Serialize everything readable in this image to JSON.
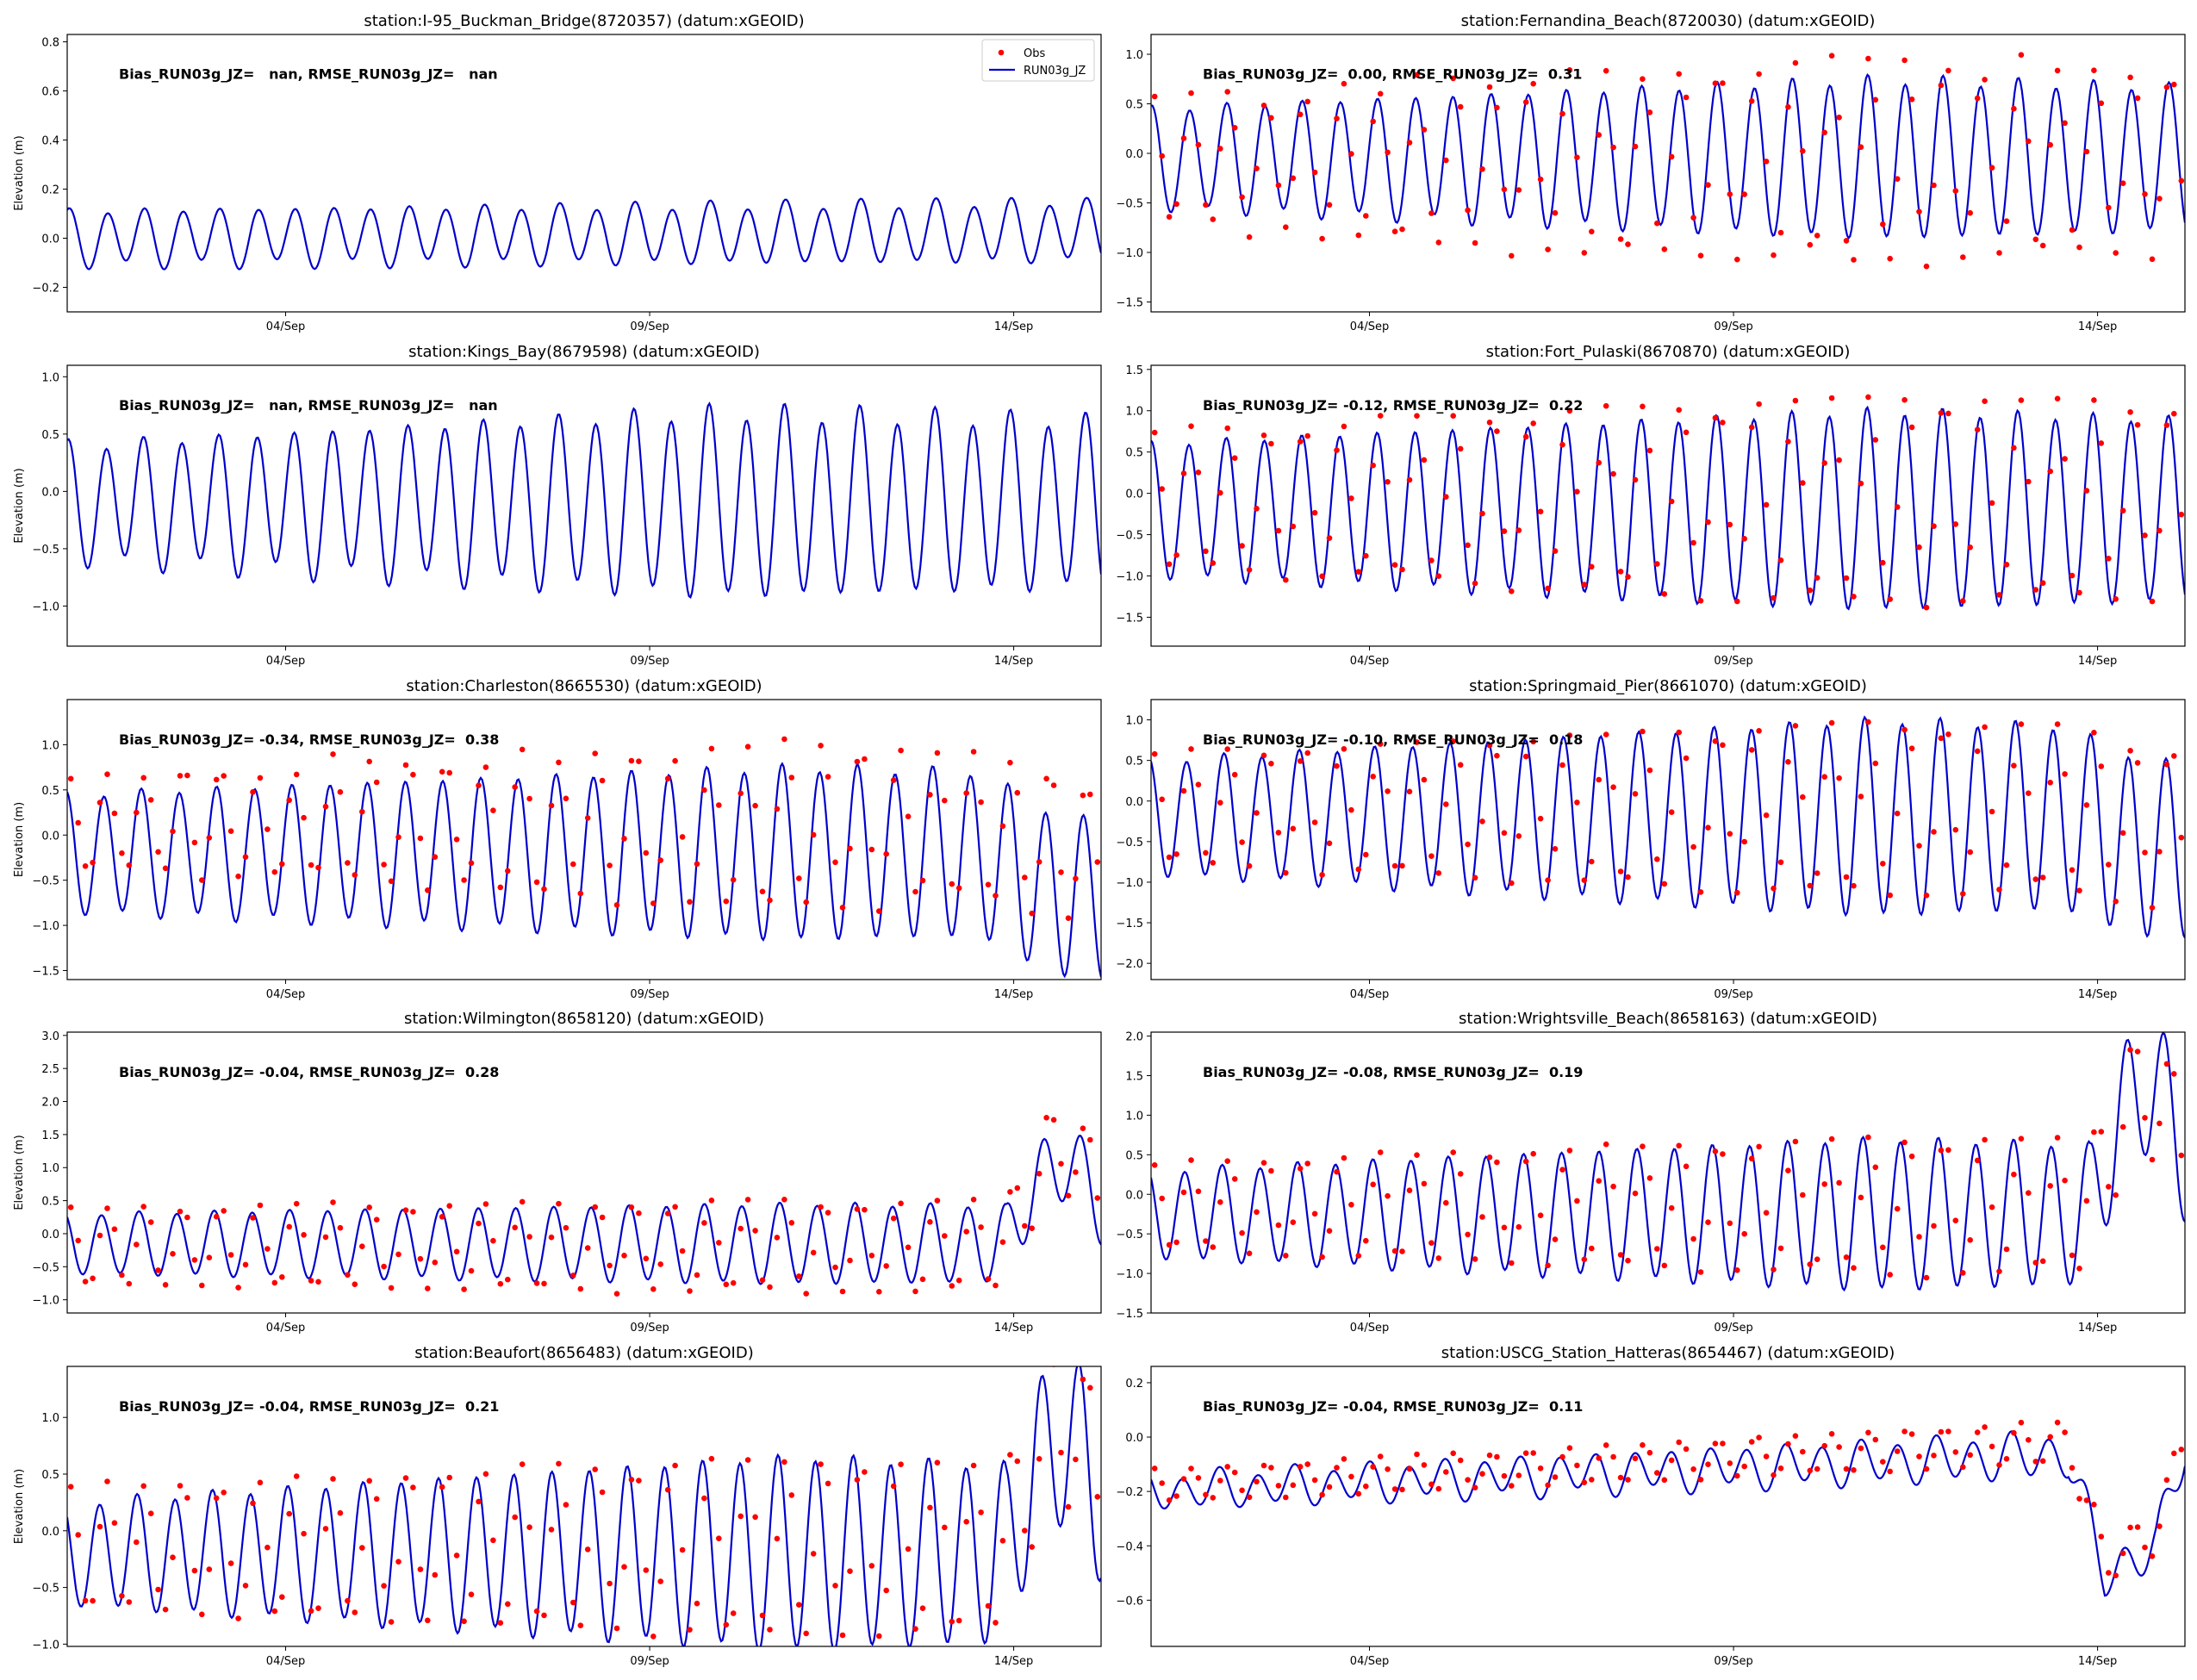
{
  "figure": {
    "legend": {
      "obs_label": "Obs",
      "model_label": "RUN03g_JZ",
      "placement": "upper right"
    },
    "colors": {
      "obs": "#ff0000",
      "model": "#0000cc",
      "axes": "#000000",
      "background": "#ffffff"
    }
  },
  "chart_data": [
    {
      "type": "line",
      "title": "station:I-95_Buckman_Bridge(8720357) (datum:xGEOID)",
      "ylabel": "Elevation (m)",
      "stats_text": "Bias_RUN03g_JZ=   nan, RMSE_RUN03g_JZ=   nan",
      "x_ticks": [
        "04/Sep",
        "09/Sep",
        "14/Sep"
      ],
      "x_tick_days": [
        4,
        9,
        14
      ],
      "xlim_days": [
        1,
        15.2
      ],
      "ylim": [
        -0.3,
        0.83
      ],
      "y_ticks": [
        -0.2,
        0.0,
        0.2,
        0.4,
        0.6,
        0.8
      ],
      "y_tick_labels": [
        "−0.2",
        "0.0",
        "0.2",
        "0.4",
        "0.6",
        "0.8"
      ],
      "has_obs": false,
      "show_legend": true,
      "series": [
        {
          "name": "RUN03g_JZ",
          "kind": "model_tide",
          "mean": 0.0,
          "amp_start": 0.11,
          "amp_end": 0.12,
          "mean_trend_end": 0.03,
          "diurnal": 0.02,
          "phase": 0.0
        }
      ]
    },
    {
      "type": "line",
      "title": "station:Fernandina_Beach(8720030) (datum:xGEOID)",
      "ylabel": "",
      "stats_text": "Bias_RUN03g_JZ=  0.00, RMSE_RUN03g_JZ=  0.31",
      "x_ticks": [
        "04/Sep",
        "09/Sep",
        "14/Sep"
      ],
      "x_tick_days": [
        4,
        9,
        14
      ],
      "xlim_days": [
        1,
        15.2
      ],
      "ylim": [
        -1.6,
        1.2
      ],
      "y_ticks": [
        -1.5,
        -1.0,
        -0.5,
        0.0,
        0.5,
        1.0
      ],
      "y_tick_labels": [
        "−1.5",
        "−1.0",
        "−0.5",
        "0.0",
        "0.5",
        "1.0"
      ],
      "has_obs": true,
      "show_legend": false,
      "series": [
        {
          "name": "RUN03g_JZ",
          "kind": "model_tide",
          "mean": -0.05,
          "amp_start": 0.5,
          "amp_end": 0.8,
          "peak_day": 11,
          "diurnal": 0.05,
          "phase": 0.3
        },
        {
          "name": "Obs",
          "kind": "obs_tide",
          "mean": -0.1,
          "amp_start": 0.65,
          "amp_end": 1.05,
          "peak_day": 11,
          "scatter": 0.35
        }
      ]
    },
    {
      "type": "line",
      "title": "station:Kings_Bay(8679598) (datum:xGEOID)",
      "ylabel": "Elevation (m)",
      "stats_text": "Bias_RUN03g_JZ=   nan, RMSE_RUN03g_JZ=   nan",
      "x_ticks": [
        "04/Sep",
        "09/Sep",
        "14/Sep"
      ],
      "x_tick_days": [
        4,
        9,
        14
      ],
      "xlim_days": [
        1,
        15.2
      ],
      "ylim": [
        -1.35,
        1.1
      ],
      "y_ticks": [
        -1.0,
        -0.5,
        0.0,
        0.5,
        1.0
      ],
      "y_tick_labels": [
        "−1.0",
        "−0.5",
        "0.0",
        "0.5",
        "1.0"
      ],
      "has_obs": false,
      "show_legend": false,
      "series": [
        {
          "name": "RUN03g_JZ",
          "kind": "model_tide",
          "mean": -0.1,
          "amp_start": 0.5,
          "amp_end": 0.8,
          "peak_day": 10,
          "diurnal": 0.08,
          "phase": 0.2
        }
      ]
    },
    {
      "type": "line",
      "title": "station:Fort_Pulaski(8670870) (datum:xGEOID)",
      "ylabel": "",
      "stats_text": "Bias_RUN03g_JZ= -0.12, RMSE_RUN03g_JZ=  0.22",
      "x_ticks": [
        "04/Sep",
        "09/Sep",
        "14/Sep"
      ],
      "x_tick_days": [
        4,
        9,
        14
      ],
      "xlim_days": [
        1,
        15.2
      ],
      "ylim": [
        -1.85,
        1.55
      ],
      "y_ticks": [
        -1.5,
        -1.0,
        -0.5,
        0.0,
        0.5,
        1.0,
        1.5
      ],
      "y_tick_labels": [
        "−1.5",
        "−1.0",
        "−0.5",
        "0.0",
        "0.5",
        "1.0",
        "1.5"
      ],
      "has_obs": true,
      "show_legend": false,
      "series": [
        {
          "name": "RUN03g_JZ",
          "kind": "model_tide",
          "mean": -0.2,
          "amp_start": 0.8,
          "amp_end": 1.2,
          "peak_day": 11,
          "diurnal": 0.05,
          "phase": 0.4
        },
        {
          "name": "Obs",
          "kind": "obs_tide",
          "mean": -0.08,
          "amp_start": 0.85,
          "amp_end": 1.3,
          "peak_day": 11,
          "scatter": 0.15
        }
      ]
    },
    {
      "type": "line",
      "title": "station:Charleston(8665530) (datum:xGEOID)",
      "ylabel": "Elevation (m)",
      "stats_text": "Bias_RUN03g_JZ= -0.34, RMSE_RUN03g_JZ=  0.38",
      "x_ticks": [
        "04/Sep",
        "09/Sep",
        "14/Sep"
      ],
      "x_tick_days": [
        4,
        9,
        14
      ],
      "xlim_days": [
        1,
        15.2
      ],
      "ylim": [
        -1.6,
        1.5
      ],
      "y_ticks": [
        -1.5,
        -1.0,
        -0.5,
        0.0,
        0.5,
        1.0
      ],
      "y_tick_labels": [
        "−1.5",
        "−1.0",
        "−0.5",
        "0.0",
        "0.5",
        "1.0"
      ],
      "has_obs": true,
      "show_legend": false,
      "series": [
        {
          "name": "RUN03g_JZ",
          "kind": "model_tide",
          "mean": -0.2,
          "amp_start": 0.65,
          "amp_end": 0.95,
          "peak_day": 11,
          "diurnal": 0.05,
          "phase": 0.6,
          "end_drop": -0.5
        },
        {
          "name": "Obs",
          "kind": "obs_tide",
          "mean": 0.12,
          "amp_start": 0.55,
          "amp_end": 0.9,
          "peak_day": 11,
          "scatter": 0.35,
          "end_drop": -0.3
        }
      ]
    },
    {
      "type": "line",
      "title": "station:Springmaid_Pier(8661070) (datum:xGEOID)",
      "ylabel": "",
      "stats_text": "Bias_RUN03g_JZ= -0.10, RMSE_RUN03g_JZ=  0.18",
      "x_ticks": [
        "04/Sep",
        "09/Sep",
        "14/Sep"
      ],
      "x_tick_days": [
        4,
        9,
        14
      ],
      "xlim_days": [
        1,
        15.2
      ],
      "ylim": [
        -2.2,
        1.25
      ],
      "y_ticks": [
        -2.0,
        -1.5,
        -1.0,
        -0.5,
        0.0,
        0.5,
        1.0
      ],
      "y_tick_labels": [
        "−2.0",
        "−1.5",
        "−1.0",
        "−0.5",
        "0.0",
        "0.5",
        "1.0"
      ],
      "has_obs": true,
      "show_legend": false,
      "series": [
        {
          "name": "RUN03g_JZ",
          "kind": "model_tide",
          "mean": -0.2,
          "amp_start": 0.7,
          "amp_end": 1.2,
          "peak_day": 11,
          "diurnal": 0.05,
          "phase": 0.8,
          "end_drop": -0.4
        },
        {
          "name": "Obs",
          "kind": "obs_tide",
          "mean": -0.1,
          "amp_start": 0.7,
          "amp_end": 1.1,
          "peak_day": 11,
          "scatter": 0.1,
          "end_drop": -0.2
        }
      ]
    },
    {
      "type": "line",
      "title": "station:Wilmington(8658120) (datum:xGEOID)",
      "ylabel": "Elevation (m)",
      "stats_text": "Bias_RUN03g_JZ= -0.04, RMSE_RUN03g_JZ=  0.28",
      "x_ticks": [
        "04/Sep",
        "09/Sep",
        "14/Sep"
      ],
      "x_tick_days": [
        4,
        9,
        14
      ],
      "xlim_days": [
        1,
        15.2
      ],
      "ylim": [
        -1.2,
        3.05
      ],
      "y_ticks": [
        -1.0,
        -0.5,
        0.0,
        0.5,
        1.0,
        1.5,
        2.0,
        2.5,
        3.0
      ],
      "y_tick_labels": [
        "−1.0",
        "−0.5",
        "0.0",
        "0.5",
        "1.0",
        "1.5",
        "2.0",
        "2.5",
        "3.0"
      ],
      "has_obs": true,
      "show_legend": false,
      "series": [
        {
          "name": "RUN03g_JZ",
          "kind": "model_tide",
          "mean": -0.15,
          "amp_start": 0.45,
          "amp_end": 0.6,
          "peak_day": 11,
          "diurnal": 0.03,
          "phase": 1.0,
          "end_surge": 1.2
        },
        {
          "name": "Obs",
          "kind": "obs_tide",
          "mean": -0.2,
          "amp_start": 0.6,
          "amp_end": 0.7,
          "peak_day": 11,
          "scatter": 0.15,
          "end_surge": 1.5
        }
      ]
    },
    {
      "type": "line",
      "title": "station:Wrightsville_Beach(8658163) (datum:xGEOID)",
      "ylabel": "",
      "stats_text": "Bias_RUN03g_JZ= -0.08, RMSE_RUN03g_JZ=  0.19",
      "x_ticks": [
        "04/Sep",
        "09/Sep",
        "14/Sep"
      ],
      "x_tick_days": [
        4,
        9,
        14
      ],
      "xlim_days": [
        1,
        15.2
      ],
      "ylim": [
        -1.5,
        2.05
      ],
      "y_ticks": [
        -1.5,
        -1.0,
        -0.5,
        0.0,
        0.5,
        1.0,
        1.5,
        2.0
      ],
      "y_tick_labels": [
        "−1.5",
        "−1.0",
        "−0.5",
        "0.0",
        "0.5",
        "1.0",
        "1.5",
        "2.0"
      ],
      "has_obs": true,
      "show_legend": false,
      "series": [
        {
          "name": "RUN03g_JZ",
          "kind": "model_tide",
          "mean": -0.25,
          "amp_start": 0.55,
          "amp_end": 0.95,
          "peak_day": 11,
          "diurnal": 0.04,
          "phase": 1.1,
          "end_surge": 1.6
        },
        {
          "name": "Obs",
          "kind": "obs_tide",
          "mean": -0.15,
          "amp_start": 0.55,
          "amp_end": 0.9,
          "peak_day": 11,
          "scatter": 0.1,
          "end_surge": 1.4
        }
      ]
    },
    {
      "type": "line",
      "title": "station:Beaufort(8656483) (datum:xGEOID)",
      "ylabel": "Elevation (m)",
      "stats_text": "Bias_RUN03g_JZ= -0.04, RMSE_RUN03g_JZ=  0.21",
      "x_ticks": [
        "04/Sep",
        "09/Sep",
        "14/Sep"
      ],
      "x_tick_days": [
        4,
        9,
        14
      ],
      "xlim_days": [
        1,
        15.2
      ],
      "ylim": [
        -1.02,
        1.45
      ],
      "y_ticks": [
        -1.0,
        -0.5,
        0.0,
        0.5,
        1.0
      ],
      "y_tick_labels": [
        "−1.0",
        "−0.5",
        "0.0",
        "0.5",
        "1.0"
      ],
      "has_obs": true,
      "show_legend": false,
      "series": [
        {
          "name": "RUN03g_JZ",
          "kind": "model_tide",
          "mean": -0.2,
          "amp_start": 0.45,
          "amp_end": 0.85,
          "peak_day": 11,
          "diurnal": 0.04,
          "phase": 1.3,
          "end_surge": 1.0
        },
        {
          "name": "Obs",
          "kind": "obs_tide",
          "mean": -0.15,
          "amp_start": 0.55,
          "amp_end": 0.8,
          "peak_day": 11,
          "scatter": 0.12,
          "end_surge": 1.1
        }
      ]
    },
    {
      "type": "line",
      "title": "station:USCG_Station_Hatteras(8654467) (datum:xGEOID)",
      "ylabel": "",
      "stats_text": "Bias_RUN03g_JZ= -0.04, RMSE_RUN03g_JZ=  0.11",
      "x_ticks": [
        "04/Sep",
        "09/Sep",
        "14/Sep"
      ],
      "x_tick_days": [
        4,
        9,
        14
      ],
      "xlim_days": [
        1,
        15.2
      ],
      "ylim": [
        -0.77,
        0.26
      ],
      "y_ticks": [
        -0.6,
        -0.4,
        -0.2,
        0.0,
        0.2
      ],
      "y_tick_labels": [
        "−0.6",
        "−0.4",
        "−0.2",
        "0.0",
        "0.2"
      ],
      "has_obs": true,
      "show_legend": false,
      "series": [
        {
          "name": "RUN03g_JZ",
          "kind": "model_tide",
          "mean": -0.2,
          "amp_start": 0.06,
          "amp_end": 0.08,
          "mean_trend_end": 0.15,
          "diurnal": 0.02,
          "phase": 1.5,
          "end_hatteras": true
        },
        {
          "name": "Obs",
          "kind": "obs_tide",
          "mean": -0.18,
          "amp_start": 0.06,
          "amp_end": 0.08,
          "mean_trend_end": 0.18,
          "scatter": 0.02,
          "end_hatteras": true
        }
      ]
    }
  ]
}
